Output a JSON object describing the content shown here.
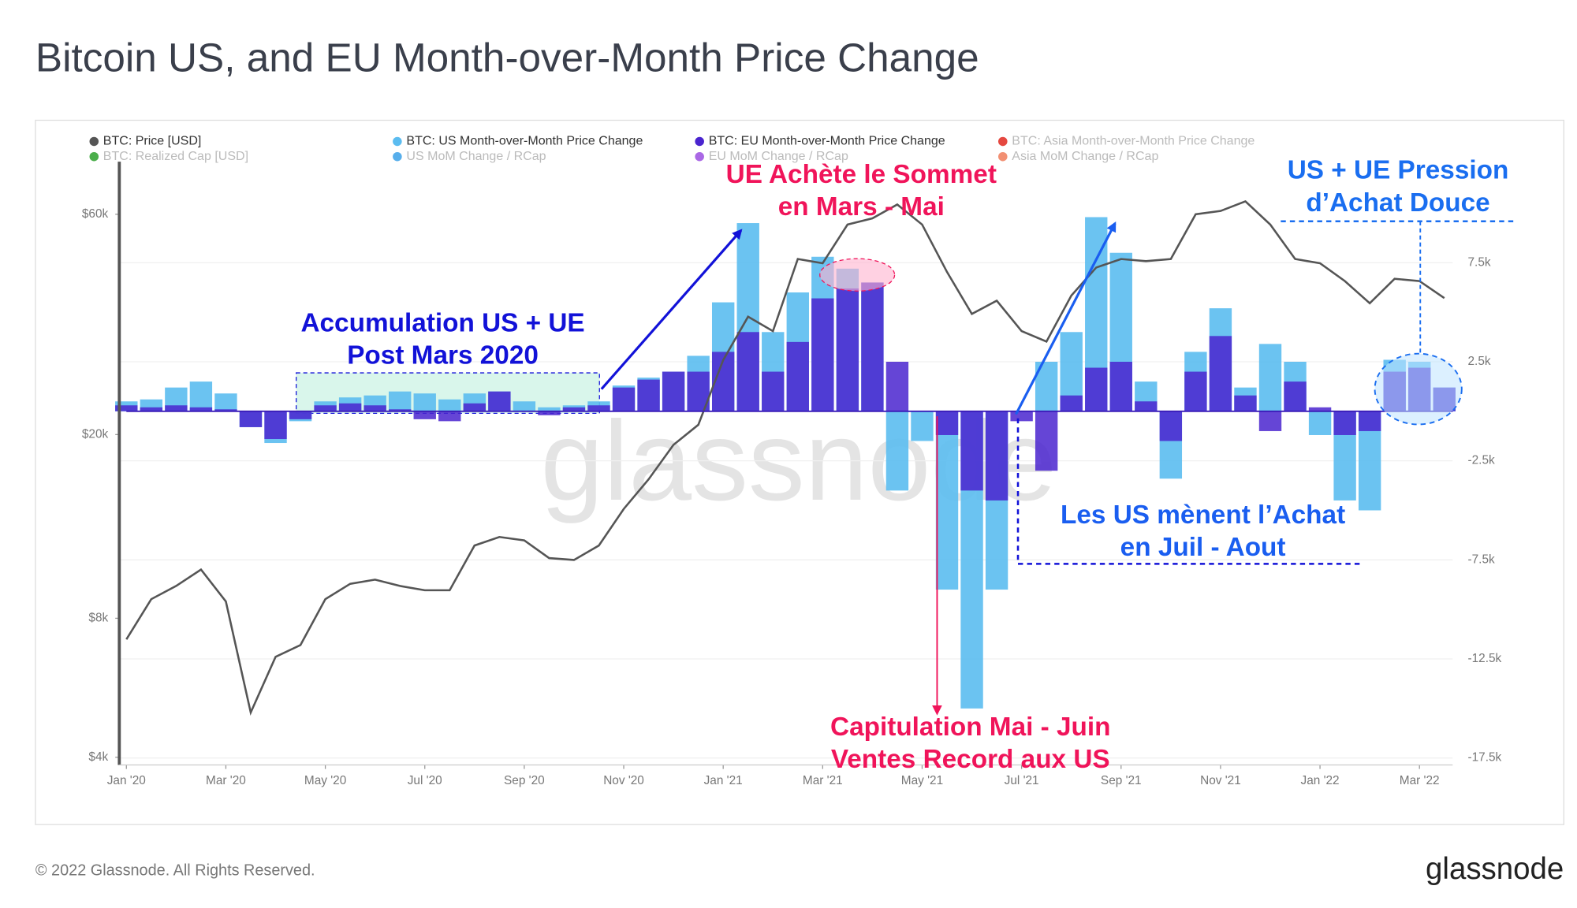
{
  "chart_data": {
    "type": "combo",
    "title": "Bitcoin US, and EU Month-over-Month Price Change",
    "categories": [
      "Jan '20",
      null,
      null,
      null,
      "Mar '20",
      null,
      null,
      null,
      "May '20",
      null,
      null,
      null,
      "Jul '20",
      null,
      null,
      null,
      "Sep '20",
      null,
      null,
      null,
      "Nov '20",
      null,
      null,
      null,
      "Jan '21",
      null,
      null,
      null,
      "Mar '21",
      null,
      null,
      null,
      "May '21",
      null,
      null,
      null,
      "Jul '21",
      null,
      null,
      null,
      "Sep '21",
      null,
      null,
      null,
      "Nov '21",
      null,
      null,
      null,
      "Jan '22",
      null,
      null,
      null,
      "Mar '22",
      null
    ],
    "series": [
      {
        "name": "BTC: Price [USD]",
        "color": "#555555",
        "kind": "line",
        "axis": "y",
        "values": [
          7200,
          8800,
          9400,
          10200,
          8700,
          5000,
          6600,
          7000,
          8800,
          9500,
          9700,
          9400,
          9200,
          9200,
          11500,
          12000,
          11800,
          10800,
          10700,
          11500,
          13800,
          16000,
          19000,
          21000,
          29000,
          36000,
          33500,
          48000,
          47000,
          57000,
          58800,
          63000,
          57000,
          45000,
          36500,
          39000,
          33500,
          31800,
          40000,
          46000,
          48000,
          47500,
          48000,
          60000,
          61000,
          64000,
          57000,
          48000,
          47000,
          43000,
          38500,
          43500,
          43000,
          39500
        ]
      },
      {
        "name": "BTC: US Month-over-Month Price Change",
        "color": "#5bbcf0",
        "kind": "bar",
        "axis": "y2",
        "values": [
          500,
          600,
          1200,
          1500,
          900,
          -800,
          -1600,
          -500,
          500,
          700,
          800,
          1000,
          900,
          600,
          900,
          1000,
          500,
          200,
          300,
          500,
          1300,
          1700,
          2000,
          2800,
          5500,
          9500,
          4000,
          6000,
          7800,
          7200,
          6500,
          -4000,
          -1500,
          -9000,
          -15000,
          -9000,
          0,
          2500,
          4000,
          9800,
          8000,
          1500,
          -3400,
          3000,
          5200,
          1200,
          3400,
          2500,
          -1200,
          -4500,
          -5000,
          2600,
          2500,
          1200
        ]
      },
      {
        "name": "BTC: EU Month-over-Month Price Change",
        "color": "#4a24cf",
        "kind": "bar",
        "axis": "y2",
        "values": [
          300,
          200,
          300,
          200,
          100,
          -800,
          -1400,
          -400,
          300,
          400,
          300,
          100,
          -400,
          -500,
          400,
          1000,
          0,
          -200,
          200,
          300,
          1200,
          1600,
          2000,
          2000,
          3000,
          4000,
          2000,
          3500,
          5700,
          6200,
          6500,
          2500,
          0,
          -1200,
          -4000,
          -4500,
          -500,
          -3000,
          800,
          2200,
          2500,
          500,
          -1500,
          2000,
          3800,
          800,
          -1000,
          1500,
          200,
          -1200,
          -1000,
          2000,
          2200,
          1200
        ]
      }
    ],
    "legend_inactive": [
      {
        "name": "BTC: Asia Month-over-Month Price Change",
        "color": "#e0281e"
      },
      {
        "name": "BTC: Realized Cap [USD]",
        "color": "#2ca02c"
      },
      {
        "name": "US MoM Change / RCap",
        "color": "#3aa0e8"
      },
      {
        "name": "EU MoM Change / RCap",
        "color": "#9b4de0"
      },
      {
        "name": "Asia MoM Change / RCap",
        "color": "#f07c5a"
      }
    ],
    "ylog": true,
    "ylim": [
      3850,
      78000
    ],
    "yticks": [
      {
        "value": 4000,
        "label": "$4k"
      },
      {
        "value": 8000,
        "label": "$8k"
      },
      {
        "value": 20000,
        "label": "$20k"
      },
      {
        "value": 60000,
        "label": "$60k"
      }
    ],
    "y2lim": [
      -17850,
      12600
    ],
    "y2ticks": [
      {
        "value": -17500,
        "label": "-17.5k"
      },
      {
        "value": -12500,
        "label": "-12.5k"
      },
      {
        "value": -7500,
        "label": "-7.5k"
      },
      {
        "value": -2500,
        "label": "-2.5k"
      },
      {
        "value": 2500,
        "label": "2.5k"
      },
      {
        "value": 7500,
        "label": "7.5k"
      }
    ],
    "grid": true,
    "annotations": [
      {
        "lines": [
          "Accumulation US + UE",
          "Post Mars 2020"
        ],
        "color": "#1212d8"
      },
      {
        "lines": [
          "UE Achète le Sommet",
          "en Mars - Mai"
        ],
        "color": "#f0145a"
      },
      {
        "lines": [
          "Capitulation Mai - Juin",
          "Ventes Record aux US"
        ],
        "color": "#f0145a"
      },
      {
        "lines": [
          "Les US mènent l’Achat",
          "en Juil - Aout"
        ],
        "color": "#1a5ef0"
      },
      {
        "lines": [
          "US + UE Pression",
          "d’Achat Douce"
        ],
        "color": "#1a6ef0"
      }
    ]
  },
  "watermark": "glassnode",
  "footer": {
    "copyright": "© 2022 Glassnode. All Rights Reserved.",
    "logo": "glassnode"
  }
}
